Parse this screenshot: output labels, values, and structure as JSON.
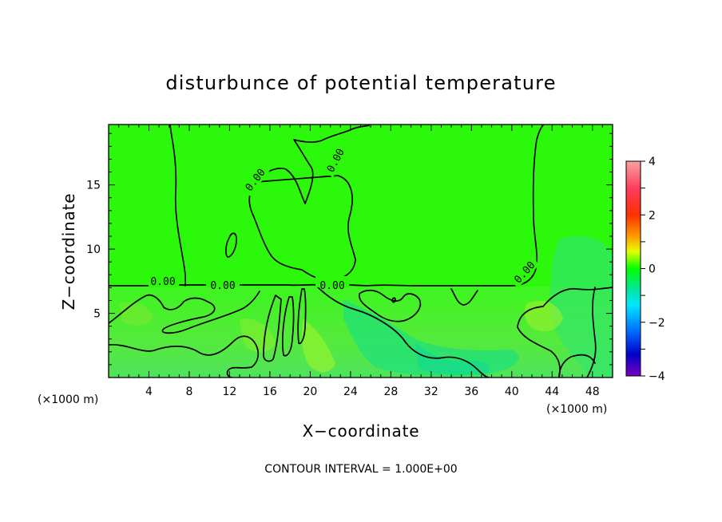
{
  "chart_data": {
    "type": "heatmap",
    "title": "disturbunce of potential temperature",
    "xlabel": "X−coordinate",
    "ylabel": "Z−coordinate",
    "x_unit_label": "(×1000 m)",
    "x_unit_label_right": "(×1000 m)",
    "x_ticks": [
      4,
      8,
      12,
      16,
      20,
      24,
      28,
      32,
      36,
      40,
      44,
      48
    ],
    "y_ticks": [
      5,
      10,
      15
    ],
    "xlim": [
      0,
      50
    ],
    "ylim": [
      0,
      19.7
    ],
    "colorbar": {
      "ticks": [
        4,
        2,
        0,
        -2,
        -4
      ],
      "tick_labels": [
        "4",
        "2",
        "0",
        "−2",
        "−4"
      ],
      "range": [
        -4,
        4
      ]
    },
    "contour_labels": [
      "0.00",
      "0.00",
      "0.00",
      "0.00",
      "0.00",
      "0.00"
    ],
    "footer": "CONTOUR INTERVAL = 1.000E+00"
  },
  "colors": {
    "field_base": "#21f514",
    "field_upper": "#2cff00",
    "field_low_anomaly": "#00e68a",
    "field_warm_anomaly": "#b3ff1f"
  }
}
